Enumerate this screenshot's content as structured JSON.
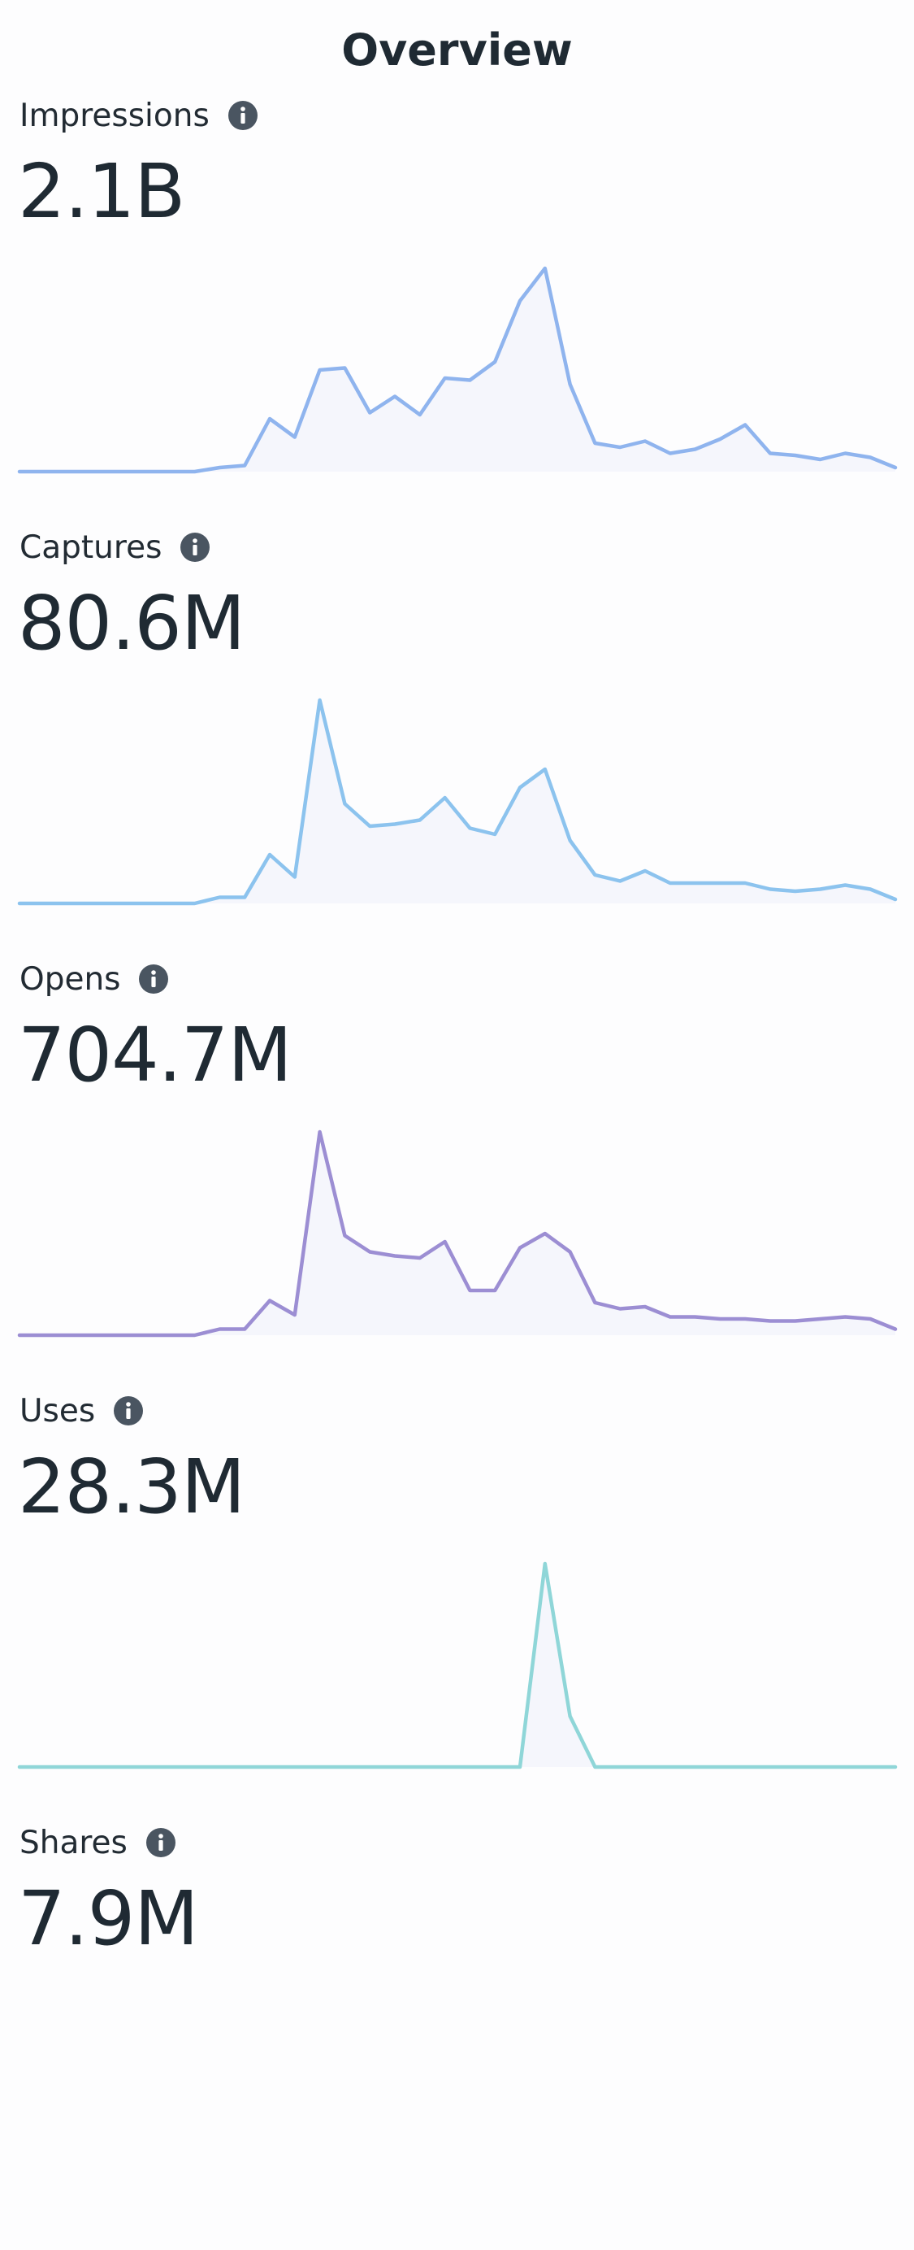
{
  "page": {
    "title": "Overview"
  },
  "chart_data": [
    {
      "type": "area",
      "label": "Impressions",
      "value": "2.1B",
      "color": "#8fb4ee",
      "values": [
        0,
        0,
        0,
        0,
        0,
        0,
        0,
        0,
        2,
        3,
        26,
        17,
        50,
        51,
        29,
        37,
        28,
        46,
        45,
        54,
        84,
        100,
        43,
        14,
        12,
        15,
        9,
        11,
        16,
        23,
        9,
        8,
        6,
        9,
        7,
        2
      ],
      "ylim": [
        0,
        100
      ]
    },
    {
      "type": "area",
      "label": "Captures",
      "value": "80.6M",
      "color": "#8cc3ee",
      "values": [
        0,
        0,
        0,
        0,
        0,
        0,
        0,
        0,
        3,
        3,
        24,
        13,
        100,
        49,
        38,
        39,
        41,
        52,
        37,
        34,
        57,
        66,
        31,
        14,
        11,
        16,
        10,
        10,
        10,
        10,
        7,
        6,
        7,
        9,
        7,
        2
      ],
      "ylim": [
        0,
        100
      ]
    },
    {
      "type": "area",
      "label": "Opens",
      "value": "704.7M",
      "color": "#9c8ed3",
      "values": [
        0,
        0,
        0,
        0,
        0,
        0,
        0,
        0,
        3,
        3,
        17,
        10,
        100,
        49,
        41,
        39,
        38,
        46,
        22,
        22,
        43,
        50,
        41,
        16,
        13,
        14,
        9,
        9,
        8,
        8,
        7,
        7,
        8,
        9,
        8,
        3
      ],
      "ylim": [
        0,
        100
      ]
    },
    {
      "type": "area",
      "label": "Uses",
      "value": "28.3M",
      "color": "#8fd6d8",
      "values": [
        0,
        0,
        0,
        0,
        0,
        0,
        0,
        0,
        0,
        0,
        0,
        0,
        0,
        0,
        0,
        0,
        0,
        0,
        0,
        0,
        0,
        100,
        25,
        0,
        0,
        0,
        0,
        0,
        0,
        0,
        0,
        0,
        0,
        0,
        0,
        0
      ],
      "ylim": [
        0,
        100
      ]
    },
    {
      "type": "area",
      "label": "Shares",
      "value": "7.9M",
      "color": "#8fb4ee",
      "values": [],
      "ylim": [
        0,
        100
      ]
    }
  ]
}
